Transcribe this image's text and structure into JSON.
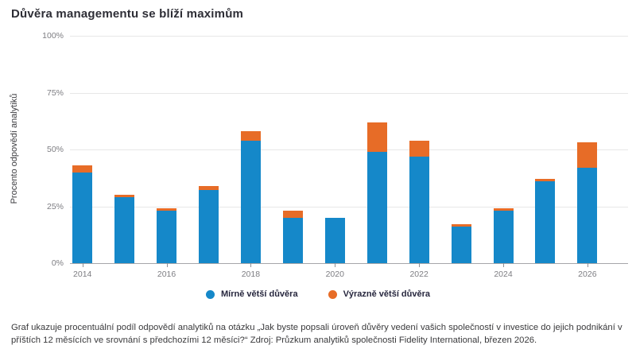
{
  "title": "Důvěra managementu se blíží maximům",
  "chart_data": {
    "type": "bar",
    "stacked": true,
    "title": "Důvěra managementu se blíží maximům",
    "categories": [
      2014,
      2015,
      2016,
      2017,
      2018,
      2019,
      2020,
      2021,
      2022,
      2023,
      2024,
      2025,
      2026
    ],
    "x_tick_labels": [
      "2014",
      "2016",
      "2018",
      "2020",
      "2022",
      "2024",
      "2026"
    ],
    "series": [
      {
        "name": "Mírně větší důvěra",
        "color": "#1588c9",
        "values": [
          40,
          29,
          23,
          32,
          54,
          20,
          20,
          49,
          47,
          16,
          23,
          36,
          42
        ]
      },
      {
        "name": "Výrazně větší důvěra",
        "color": "#e76c27",
        "values": [
          3,
          1,
          1,
          2,
          4,
          3,
          0,
          13,
          7,
          1,
          1,
          1,
          11
        ]
      }
    ],
    "xlabel": "",
    "ylabel": "Procento odpovědí analytiků",
    "y_ticks": [
      "100%",
      "75%",
      "50%",
      "25%",
      "0%"
    ],
    "ylim": [
      0,
      100
    ],
    "grid": true,
    "legend_position": "bottom"
  },
  "caption": "Graf ukazuje procentuální podíl odpovědí analytiků na otázku „Jak byste popsali úroveň důvěry vedení vašich společností v investice do jejich podnikání v příštích 12 měsících ve srovnání s předchozími 12 měsíci?“ Zdroj: Průzkum analytiků společnosti Fidelity International, březen 2026."
}
